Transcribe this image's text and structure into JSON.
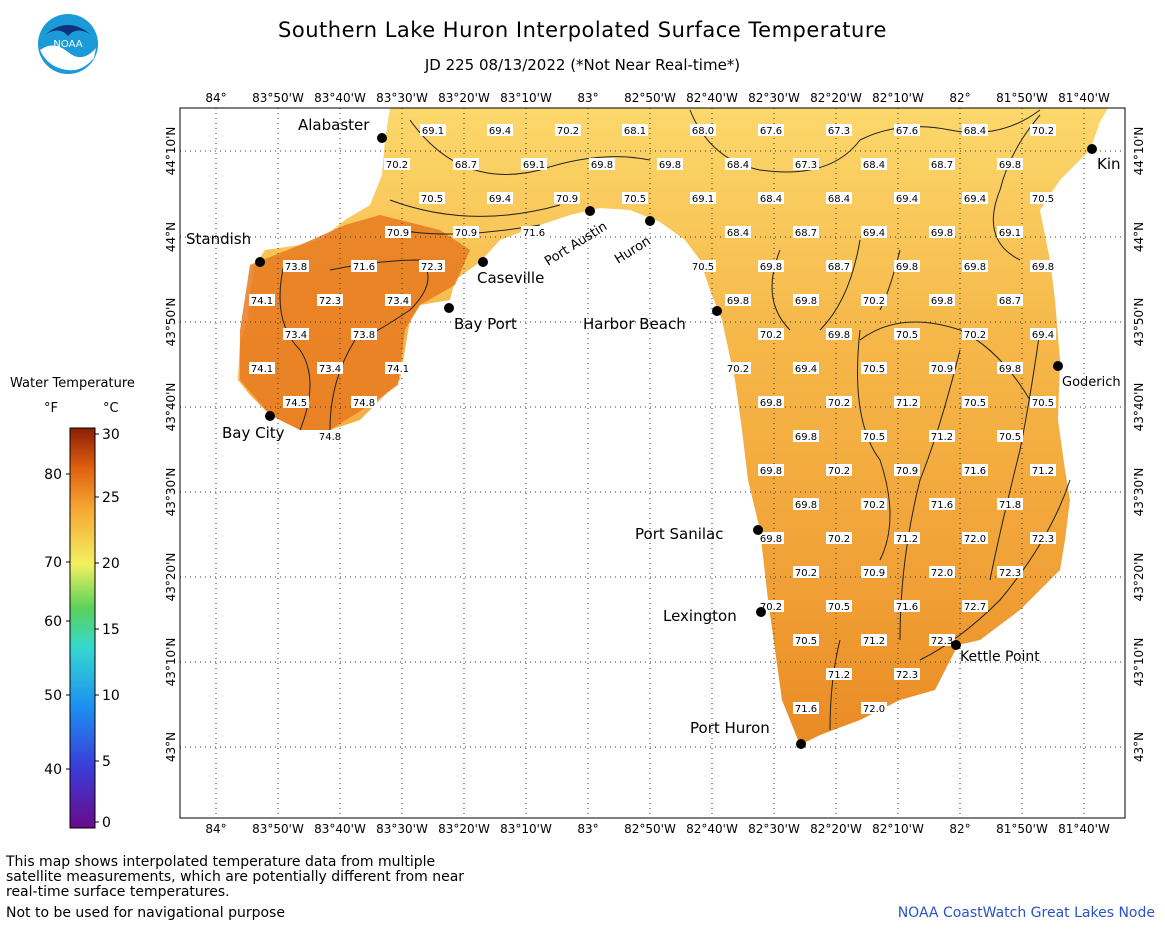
{
  "header": {
    "title": "Southern Lake Huron Interpolated Surface Temperature",
    "subtitle": "JD 225 08/13/2022 (*Not Near Real-time*)"
  },
  "logo": {
    "icon": "noaa-logo",
    "text": "NOAA"
  },
  "axes": {
    "lon_labels": [
      "84°",
      "83°50'W",
      "83°40'W",
      "83°30'W",
      "83°20'W",
      "83°10'W",
      "83°",
      "82°50'W",
      "82°40'W",
      "82°30'W",
      "82°20'W",
      "82°10'W",
      "82°",
      "81°50'W",
      "81°40'W"
    ],
    "lat_labels": [
      "44°10'N",
      "44°N",
      "43°50'N",
      "43°40'N",
      "43°30'N",
      "43°20'N",
      "43°10'N",
      "43°N"
    ]
  },
  "places": [
    "Alabaster",
    "Standish",
    "Caseville",
    "Bay Port",
    "Bay City",
    "Port Austin",
    "Huron",
    "Harbor Beach",
    "Port Sanilac",
    "Lexington",
    "Kettle Point",
    "Port Huron",
    "Kin",
    "Goderich"
  ],
  "temperatures": [
    "69.1",
    "69.4",
    "70.2",
    "68.1",
    "68.0",
    "67.6",
    "67.3",
    "67.6",
    "68.4",
    "70.2",
    "70.2",
    "68.7",
    "69.1",
    "69.8",
    "69.8",
    "68.4",
    "67.3",
    "68.4",
    "68.7",
    "69.8",
    "70.5",
    "69.4",
    "70.9",
    "70.5",
    "69.1",
    "68.4",
    "68.4",
    "69.4",
    "69.4",
    "70.5",
    "70.9",
    "70.9",
    "71.6",
    "68.4",
    "68.7",
    "69.4",
    "69.8",
    "69.1",
    "73.8",
    "71.6",
    "72.3",
    "70.5",
    "69.8",
    "68.7",
    "69.8",
    "69.8",
    "69.8",
    "74.1",
    "72.3",
    "73.4",
    "69.8",
    "69.8",
    "70.2",
    "69.8",
    "68.7",
    "73.4",
    "73.8",
    "70.2",
    "69.8",
    "70.5",
    "70.2",
    "69.4",
    "74.1",
    "73.4",
    "74.1",
    "70.2",
    "69.4",
    "70.5",
    "70.9",
    "69.8",
    "74.5",
    "74.8",
    "69.8",
    "70.2",
    "71.2",
    "70.5",
    "70.5",
    "74.8",
    "69.8",
    "70.5",
    "71.2",
    "70.5",
    "69.8",
    "70.2",
    "70.9",
    "71.6",
    "71.2",
    "69.8",
    "70.2",
    "71.6",
    "71.8",
    "69.8",
    "70.2",
    "71.2",
    "72.0",
    "72.3",
    "70.2",
    "70.9",
    "72.0",
    "72.3",
    "70.2",
    "70.5",
    "71.6",
    "72.7",
    "70.5",
    "71.2",
    "72.3",
    "71.2",
    "72.3",
    "71.6",
    "72.0"
  ],
  "legend": {
    "title": "Water Temperature",
    "f_label": "°F",
    "c_label": "°C",
    "f_ticks": [
      "80",
      "70",
      "60",
      "50",
      "40"
    ],
    "c_ticks": [
      "30",
      "25",
      "20",
      "15",
      "10",
      "5",
      "0"
    ],
    "range_c": [
      0,
      30
    ]
  },
  "footer": {
    "note": "This map shows interpolated temperature data from multiple satellite measurements, which are potentially different from near real-time surface temperatures.",
    "disclaimer": "Not to be used for navigational purpose",
    "credit": "NOAA CoastWatch Great Lakes Node"
  },
  "colors": {
    "warm": "#f0a030",
    "cool": "#fcd86a",
    "hot": "#e46c10",
    "land": "#ffffff"
  }
}
